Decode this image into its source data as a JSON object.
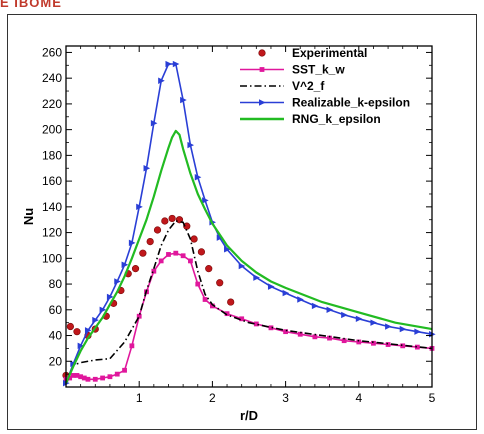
{
  "header": {
    "text": "E  IBOME"
  },
  "chart_data": {
    "type": "line",
    "title": "",
    "xlabel": "r/D",
    "ylabel": "Nu",
    "xlim": [
      0.0,
      5.0
    ],
    "ylim": [
      0,
      265
    ],
    "xticks": [
      1,
      2,
      3,
      4,
      5
    ],
    "yticks": [
      20,
      40,
      60,
      80,
      100,
      120,
      140,
      160,
      180,
      200,
      220,
      240,
      260
    ],
    "legend_position": "top-right",
    "series": [
      {
        "name": "Experimental",
        "style": "markers",
        "marker": "circle",
        "color": "#c0171b",
        "x": [
          0.0,
          0.06,
          0.15,
          0.3,
          0.4,
          0.55,
          0.65,
          0.75,
          0.85,
          0.95,
          1.05,
          1.15,
          1.25,
          1.35,
          1.45,
          1.55,
          1.65,
          1.75,
          1.85,
          1.95,
          2.1,
          2.25
        ],
        "y": [
          9,
          47,
          43,
          40,
          45,
          55,
          65,
          75,
          88,
          92,
          104,
          113,
          122,
          129,
          131,
          130,
          125,
          115,
          105,
          92,
          81,
          66
        ]
      },
      {
        "name": "SST_k_w",
        "style": "line-markers",
        "marker": "square",
        "color": "#e0179c",
        "x": [
          0.0,
          0.05,
          0.1,
          0.15,
          0.2,
          0.25,
          0.3,
          0.4,
          0.5,
          0.6,
          0.7,
          0.8,
          0.9,
          1.0,
          1.1,
          1.2,
          1.3,
          1.4,
          1.5,
          1.6,
          1.7,
          1.8,
          1.9,
          2.0,
          2.2,
          2.4,
          2.6,
          2.8,
          3.0,
          3.2,
          3.4,
          3.6,
          3.8,
          4.0,
          4.2,
          4.4,
          4.6,
          4.8,
          5.0
        ],
        "y": [
          6,
          7,
          9,
          9,
          8,
          7,
          6,
          6,
          7,
          8,
          10,
          13,
          32,
          55,
          74,
          90,
          98,
          103,
          104,
          102,
          98,
          80,
          68,
          63,
          57,
          53,
          49,
          46,
          43,
          41,
          39,
          38,
          36,
          35,
          34,
          33,
          32,
          31,
          30
        ]
      },
      {
        "name": "V^2_f",
        "style": "dashdot",
        "color": "#000000",
        "x": [
          0.0,
          0.1,
          0.2,
          0.4,
          0.6,
          0.8,
          1.0,
          1.1,
          1.2,
          1.3,
          1.4,
          1.5,
          1.6,
          1.7,
          1.8,
          1.9,
          2.0,
          2.2,
          2.5,
          3.0,
          3.5,
          4.0,
          4.5,
          5.0
        ],
        "y": [
          2,
          17,
          19,
          21,
          22,
          35,
          55,
          75,
          92,
          110,
          122,
          129,
          128,
          115,
          90,
          72,
          64,
          56,
          50,
          44,
          40,
          36,
          33,
          30
        ]
      },
      {
        "name": "Realizable_k-epsilon",
        "style": "line-markers",
        "marker": "triangle-right",
        "color": "#2a3fd6",
        "x": [
          0.0,
          0.1,
          0.2,
          0.3,
          0.4,
          0.5,
          0.6,
          0.7,
          0.8,
          0.9,
          1.0,
          1.1,
          1.2,
          1.3,
          1.4,
          1.5,
          1.6,
          1.7,
          1.8,
          1.9,
          2.0,
          2.1,
          2.2,
          2.4,
          2.6,
          2.8,
          3.0,
          3.2,
          3.4,
          3.6,
          3.8,
          4.0,
          4.2,
          4.4,
          4.6,
          4.8,
          5.0
        ],
        "y": [
          3,
          18,
          32,
          44,
          52,
          60,
          70,
          82,
          95,
          112,
          140,
          170,
          205,
          238,
          251,
          251,
          223,
          188,
          163,
          145,
          128,
          116,
          107,
          94,
          85,
          78,
          73,
          68,
          63,
          60,
          56,
          53,
          50,
          47,
          45,
          43,
          41
        ]
      },
      {
        "name": "RNG_k_epsilon",
        "style": "line",
        "color": "#22bb22",
        "x": [
          0.0,
          0.1,
          0.2,
          0.3,
          0.4,
          0.5,
          0.6,
          0.7,
          0.8,
          0.9,
          1.0,
          1.1,
          1.2,
          1.3,
          1.4,
          1.45,
          1.5,
          1.55,
          1.6,
          1.7,
          1.8,
          1.9,
          2.0,
          2.2,
          2.4,
          2.6,
          2.8,
          3.0,
          3.5,
          4.0,
          4.5,
          5.0
        ],
        "y": [
          3,
          16,
          28,
          38,
          46,
          54,
          64,
          74,
          86,
          100,
          115,
          130,
          148,
          168,
          186,
          194,
          199,
          196,
          185,
          166,
          150,
          138,
          127,
          110,
          98,
          89,
          82,
          77,
          66,
          58,
          50,
          45
        ]
      }
    ]
  }
}
